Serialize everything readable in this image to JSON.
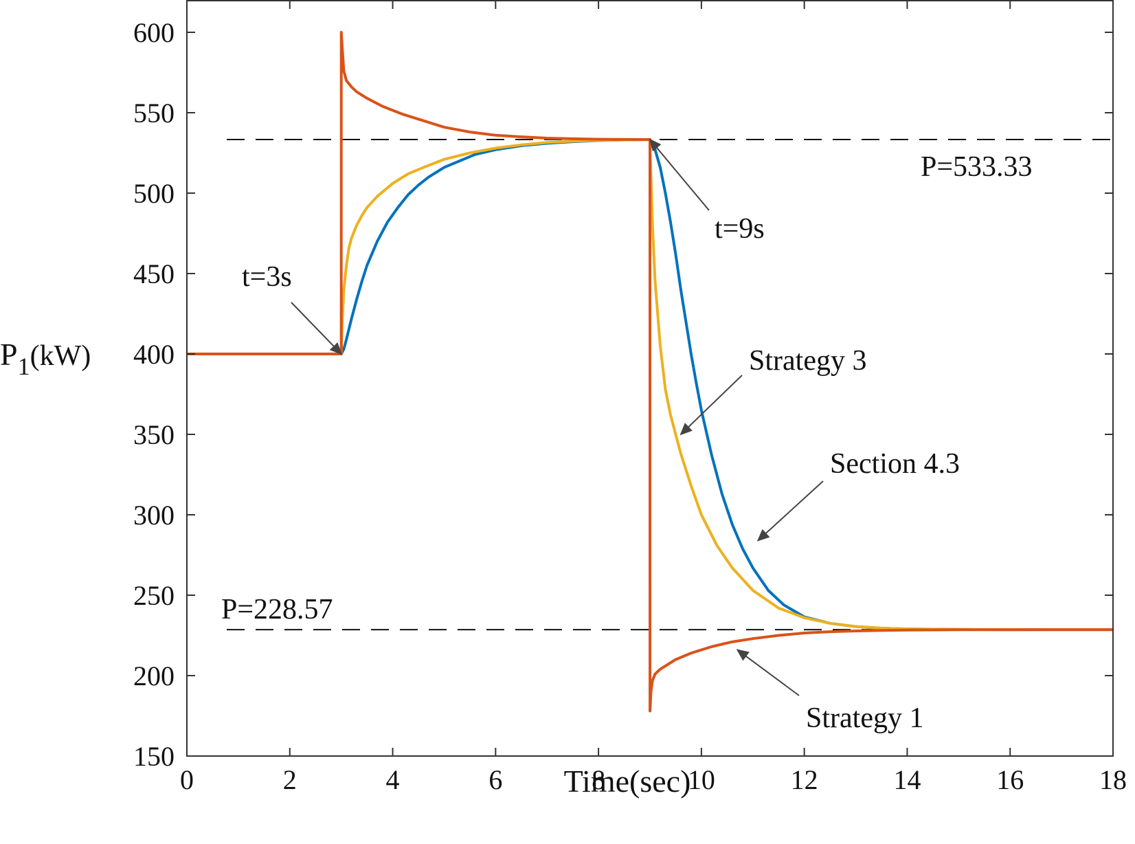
{
  "chart_data": {
    "type": "line",
    "xlabel": "Time(sec)",
    "ylabel_main": "P",
    "ylabel_sub": "1",
    "ylabel_unit": "(kW)",
    "xlim": [
      0,
      18
    ],
    "ylim": [
      150,
      600
    ],
    "x_ticks": [
      0,
      2,
      4,
      6,
      8,
      10,
      12,
      14,
      16,
      18
    ],
    "y_ticks": [
      150,
      200,
      250,
      300,
      350,
      400,
      450,
      500,
      550,
      600
    ],
    "grid": false,
    "reference_lines": [
      {
        "label": "P=533.33",
        "y": 533.33
      },
      {
        "label": "P=228.57",
        "y": 228.57
      }
    ],
    "series": [
      {
        "color": "#D95319",
        "x": [
          0,
          3,
          3.001,
          3.02,
          3.05,
          3.1,
          3.2,
          3.3,
          3.5,
          3.8,
          4.2,
          4.6,
          5,
          5.5,
          6,
          6.5,
          7,
          7.5,
          8,
          8.5,
          9,
          9.001,
          9.02,
          9.05,
          9.1,
          9.2,
          9.35,
          9.5,
          9.8,
          10.2,
          10.6,
          11,
          11.5,
          12,
          12.5,
          13,
          13.5,
          14,
          15,
          16,
          17,
          18
        ],
        "y": [
          400,
          400,
          600,
          590,
          576,
          570,
          566,
          563,
          559,
          554,
          549,
          545,
          541,
          538,
          536,
          535,
          534.2,
          533.8,
          533.5,
          533.4,
          533.33,
          178,
          190,
          197,
          201,
          204,
          207,
          210,
          214,
          218,
          221,
          223,
          225,
          226.5,
          227.3,
          227.8,
          228.1,
          228.3,
          228.5,
          228.55,
          228.57,
          228.57
        ]
      },
      {
        "color": "#EDB120",
        "x": [
          0,
          3,
          3.02,
          3.05,
          3.1,
          3.15,
          3.2,
          3.3,
          3.4,
          3.5,
          3.7,
          4,
          4.3,
          4.6,
          5,
          5.5,
          6,
          6.5,
          7,
          7.5,
          8,
          8.5,
          9,
          9.02,
          9.05,
          9.1,
          9.2,
          9.3,
          9.4,
          9.5,
          9.6,
          9.8,
          10,
          10.3,
          10.6,
          11,
          11.5,
          12,
          12.5,
          13,
          13.5,
          14,
          15,
          16,
          17,
          18
        ],
        "y": [
          400,
          400,
          420,
          440,
          455,
          466,
          472,
          480,
          486,
          491,
          498,
          506,
          512,
          516,
          521,
          525,
          528,
          530,
          531.5,
          532.3,
          532.8,
          533.1,
          533.33,
          510,
          480,
          445,
          405,
          378,
          362,
          350,
          338,
          318,
          300,
          281,
          267,
          253,
          242,
          236,
          232.5,
          230.5,
          229.5,
          229,
          228.7,
          228.6,
          228.57,
          228.57
        ]
      },
      {
        "color": "#0072BD",
        "x": [
          0,
          3,
          3.05,
          3.1,
          3.2,
          3.3,
          3.4,
          3.5,
          3.7,
          3.9,
          4.1,
          4.3,
          4.5,
          4.7,
          5,
          5.3,
          5.6,
          6,
          6.5,
          7,
          7.5,
          8,
          8.5,
          9,
          9.1,
          9.2,
          9.3,
          9.4,
          9.5,
          9.6,
          9.7,
          9.8,
          9.9,
          10,
          10.2,
          10.4,
          10.6,
          10.8,
          11,
          11.3,
          11.6,
          12,
          12.5,
          13,
          13.5,
          14,
          15,
          16,
          17,
          18
        ],
        "y": [
          400,
          400,
          403,
          409,
          422,
          434,
          445,
          455,
          470,
          482,
          491,
          499,
          505,
          510,
          516,
          520,
          524,
          527,
          529.5,
          531,
          532,
          532.7,
          533.1,
          533.33,
          527,
          516,
          500,
          482,
          462,
          440,
          420,
          400,
          382,
          365,
          337,
          313,
          294,
          279,
          267,
          253,
          244,
          236.5,
          232.5,
          230.5,
          229.5,
          229,
          228.7,
          228.6,
          228.57,
          228.57
        ]
      }
    ],
    "annotations": [
      {
        "text": "t=3s",
        "target": [
          3,
          400
        ]
      },
      {
        "text": "t=9s",
        "target": [
          9,
          533.33
        ]
      },
      {
        "text": "Strategy 3",
        "target": [
          9.6,
          350
        ]
      },
      {
        "text": "Section 4.3",
        "target": [
          11.1,
          284
        ]
      },
      {
        "text": "Strategy 1",
        "target": [
          10.7,
          216
        ]
      }
    ]
  }
}
